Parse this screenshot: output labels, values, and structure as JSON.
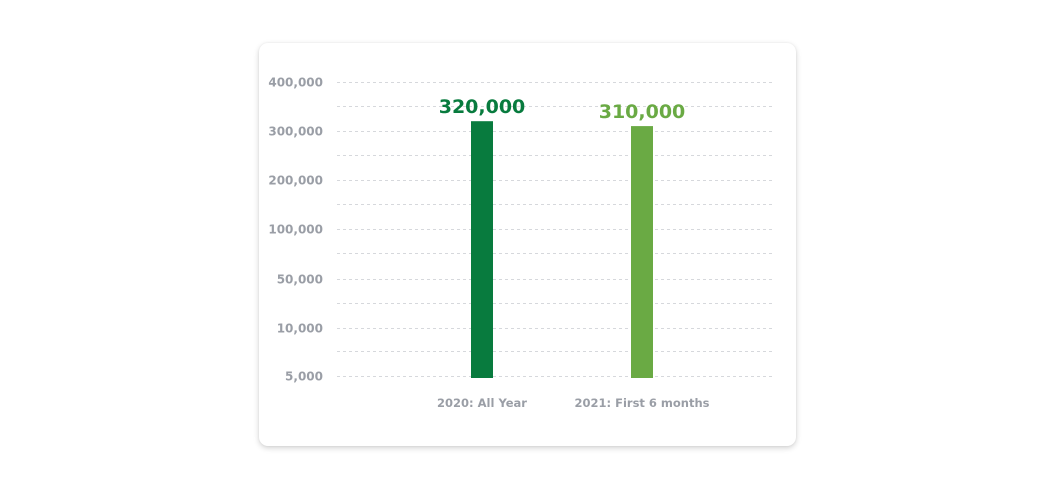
{
  "chart_data": {
    "type": "bar",
    "title": "",
    "xlabel": "",
    "ylabel": "",
    "y_scale": "categorical-ticks",
    "y_ticks": [
      "400,000",
      "300,000",
      "200,000",
      "100,000",
      "50,000",
      "10,000",
      "5,000"
    ],
    "y_tick_values": [
      400000,
      300000,
      200000,
      100000,
      50000,
      10000,
      5000
    ],
    "grid": true,
    "categories": [
      "2020: All Year",
      "2021: First 6 months"
    ],
    "values": [
      320000,
      310000
    ],
    "data_labels": [
      "320,000",
      "310,000"
    ],
    "bar_colors": [
      "#087b3e",
      "#6aaa44"
    ]
  }
}
